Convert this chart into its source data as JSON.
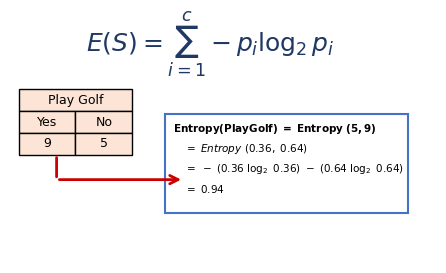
{
  "bg_color": "#ffffff",
  "formula": "E(S) = \\sum_{i=1}^{c} -p_i \\log_2 p_i",
  "table_header": "Play Golf",
  "table_col1": "Yes",
  "table_col2": "No",
  "table_val1": "9",
  "table_val2": "5",
  "table_bg": "#fce4d6",
  "table_border": "#000000",
  "box_border": "#4472c4",
  "box_bg": "#ffffff",
  "arrow_color": "#cc0000",
  "entropy_lines": [
    "Entropy(PlayGolf) =  Entropy (5,9)",
    "= Entropy (0.36, 0.64)",
    "= - (0.36 log\\mathregular{\\u2082} 0.36) - (0.64 log\\mathregular{\\u2082} 0.64)",
    "= 0.94"
  ],
  "formula_color": "#1f3864",
  "text_color": "#1f3864",
  "formula_fontsize": 18,
  "table_fontsize": 9,
  "entropy_fontsize": 8
}
